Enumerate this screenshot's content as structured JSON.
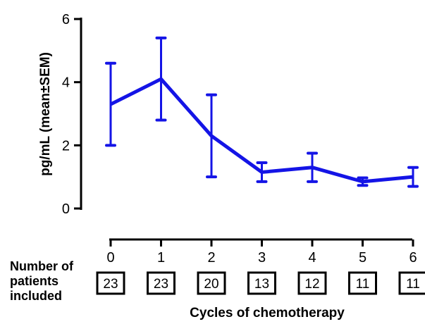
{
  "chart_data": {
    "type": "line",
    "ylabel": "pg/mL (mean±SEM)",
    "xlabel": "Cycles of chemotherapy",
    "ylim": [
      0,
      6
    ],
    "y_ticks": [
      "0",
      "2",
      "4",
      "6"
    ],
    "x": [
      "0",
      "1",
      "2",
      "3",
      "4",
      "5",
      "6"
    ],
    "series": [
      {
        "values": [
          3.3,
          4.1,
          2.3,
          1.15,
          1.3,
          0.85,
          1.0
        ],
        "sem": [
          1.3,
          1.3,
          1.3,
          0.3,
          0.45,
          0.12,
          0.3
        ]
      }
    ],
    "line_color": "#1414e6",
    "patients_label": [
      "Number of",
      "patients",
      "included"
    ],
    "patients": [
      "23",
      "23",
      "20",
      "13",
      "12",
      "11",
      "11"
    ]
  }
}
